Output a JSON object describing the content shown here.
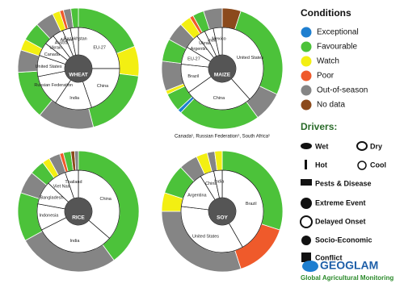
{
  "chart_data": [
    {
      "type": "pie",
      "title": "WHEAT",
      "categories": [
        "EU-27",
        "China",
        "India",
        "Russian Federation",
        "United States",
        "Canada",
        "Ukraine",
        "Australia",
        "Argentina",
        "Kazakhstan"
      ],
      "values": [
        24,
        19,
        14,
        12,
        8,
        5,
        4,
        4,
        3,
        3
      ],
      "ring": {
        "values": [
          19,
          8,
          19,
          15,
          13,
          6,
          3,
          5,
          5,
          2,
          1,
          2,
          2
        ],
        "colors": [
          "#4cc23a",
          "#f3ef12",
          "#4cc23a",
          "#858585",
          "#4cc23a",
          "#858585",
          "#f3ef12",
          "#4cc23a",
          "#858585",
          "#f3ef12",
          "#ef5a2b",
          "#858585",
          "#4cc23a"
        ]
      }
    },
    {
      "type": "pie",
      "title": "MAIZE",
      "categories": [
        "United States",
        "China",
        "Brazil",
        "EU-27",
        "Argentina",
        "Ukraine",
        "India",
        "Mexico"
      ],
      "values": [
        33,
        23,
        10,
        6,
        5,
        3,
        3,
        3
      ],
      "ring": {
        "values": [
          5,
          27,
          8,
          22,
          1,
          5,
          1,
          8,
          6,
          5,
          3,
          1,
          3,
          5
        ],
        "colors": [
          "#8b4a1c",
          "#4cc23a",
          "#858585",
          "#4cc23a",
          "#1e7fd0",
          "#4cc23a",
          "#f3ef12",
          "#858585",
          "#4cc23a",
          "#858585",
          "#f3ef12",
          "#ef5a2b",
          "#4cc23a",
          "#858585"
        ]
      },
      "footnote": "Canada¹, Russian Federation¹, South Africa¹"
    },
    {
      "type": "pie",
      "title": "RICE",
      "categories": [
        "China",
        "India",
        "Indonesia",
        "Bangladesh",
        "Viet Nam",
        "Thailand"
      ],
      "values": [
        28,
        24,
        8,
        7,
        6,
        4
      ],
      "ring": {
        "values": [
          40,
          27,
          13,
          6,
          4,
          2,
          3,
          1,
          2,
          1,
          1
        ],
        "colors": [
          "#4cc23a",
          "#858585",
          "#4cc23a",
          "#858585",
          "#4cc23a",
          "#f3ef12",
          "#858585",
          "#ef5a2b",
          "#4cc23a",
          "#8b4a1c",
          "#858585"
        ]
      }
    },
    {
      "type": "pie",
      "title": "SOY",
      "categories": [
        "Brazil",
        "United States",
        "Argentina",
        "China",
        "India"
      ],
      "values": [
        38,
        32,
        13,
        5,
        3
      ],
      "ring": {
        "values": [
          30,
          15,
          30,
          5,
          8,
          5,
          3,
          2,
          2
        ],
        "colors": [
          "#4cc23a",
          "#ef5a2b",
          "#858585",
          "#f3ef12",
          "#4cc23a",
          "#858585",
          "#f3ef12",
          "#858585",
          "#f3ef12"
        ]
      }
    }
  ],
  "legend": {
    "title": "Conditions",
    "items": [
      {
        "name": "Exceptional",
        "color": "#1e7fd0"
      },
      {
        "name": "Favourable",
        "color": "#4cc23a"
      },
      {
        "name": "Watch",
        "color": "#f3ef12"
      },
      {
        "name": "Poor",
        "color": "#ef5a2b"
      },
      {
        "name": "Out-of-season",
        "color": "#858585"
      },
      {
        "name": "No data",
        "color": "#8b4a1c"
      }
    ]
  },
  "drivers": {
    "title": "Drivers:",
    "items": [
      "Wet",
      "Dry",
      "Hot",
      "Cool",
      "Pests & Disease",
      "Extreme Event",
      "Delayed Onset",
      "Socio-Economic",
      "Conflict"
    ]
  },
  "logo": {
    "name": "GEOGLAM",
    "tagline": "Global Agricultural Monitoring"
  }
}
